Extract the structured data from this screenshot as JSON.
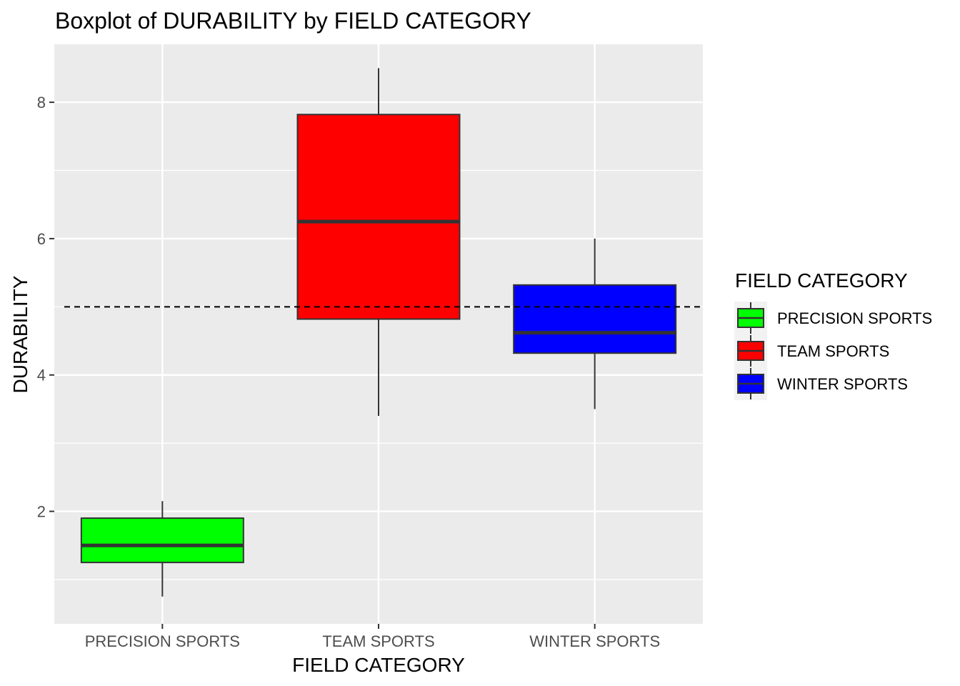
{
  "chart_data": {
    "type": "boxplot",
    "title": "Boxplot of DURABILITY by FIELD CATEGORY",
    "xlabel": "FIELD CATEGORY",
    "ylabel": "DURABILITY",
    "categories": [
      "PRECISION SPORTS",
      "TEAM SPORTS",
      "WINTER SPORTS"
    ],
    "y_ticks": [
      2,
      4,
      6,
      8
    ],
    "ylim": [
      0.35,
      8.85
    ],
    "reference_line": {
      "y": 5,
      "style": "dashed"
    },
    "boxes": [
      {
        "category": "PRECISION SPORTS",
        "whisker_low": 0.75,
        "q1": 1.25,
        "median": 1.5,
        "q3": 1.9,
        "whisker_high": 2.15,
        "color": "#00ff00"
      },
      {
        "category": "TEAM SPORTS",
        "whisker_low": 3.4,
        "q1": 4.82,
        "median": 6.25,
        "q3": 7.82,
        "whisker_high": 8.5,
        "color": "#ff0000"
      },
      {
        "category": "WINTER SPORTS",
        "whisker_low": 3.5,
        "q1": 4.32,
        "median": 4.62,
        "q3": 5.32,
        "whisker_high": 6.0,
        "color": "#0000ff"
      }
    ],
    "legend": {
      "title": "FIELD CATEGORY",
      "placement": "right",
      "entries": [
        {
          "label": "PRECISION SPORTS",
          "color": "#00ff00"
        },
        {
          "label": "TEAM SPORTS",
          "color": "#ff0000"
        },
        {
          "label": "WINTER SPORTS",
          "color": "#0000ff"
        }
      ]
    },
    "grid": true,
    "panel_background": "#ebebeb",
    "grid_color": "#ffffff"
  }
}
